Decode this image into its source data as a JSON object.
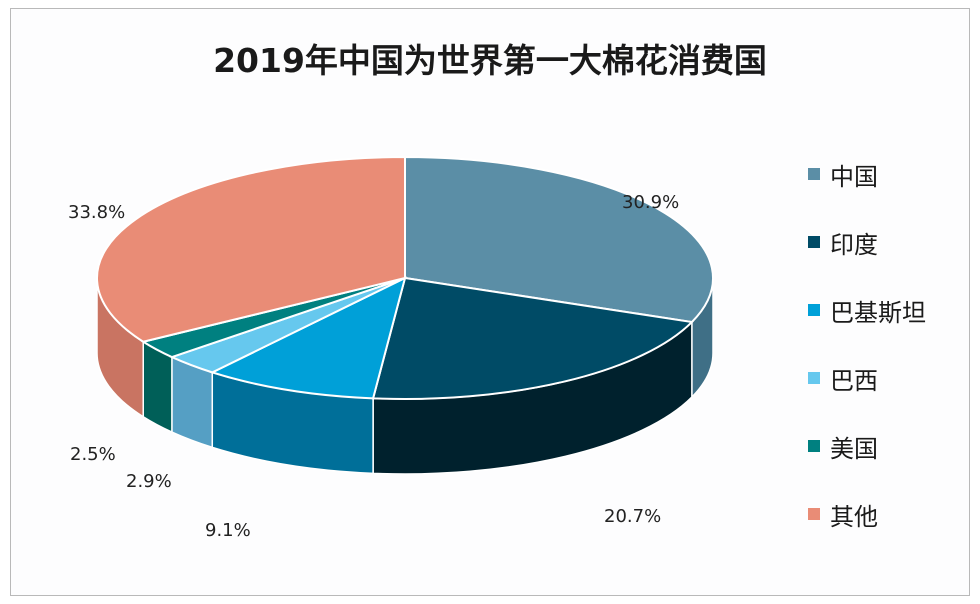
{
  "chart_data": {
    "type": "pie",
    "title": "2019年中国为世界第一大棉花消费国",
    "categories": [
      "中国",
      "印度",
      "巴基斯坦",
      "巴西",
      "美国",
      "其他"
    ],
    "values": [
      30.9,
      20.7,
      9.1,
      2.9,
      2.5,
      33.8
    ],
    "labels": [
      "30.9%",
      "20.7%",
      "9.1%",
      "2.9%",
      "2.5%",
      "33.8%"
    ],
    "colors": [
      "#5b8ea6",
      "#004b66",
      "#00a0d8",
      "#66c8ee",
      "#008080",
      "#e98c76"
    ],
    "side_colors": [
      "#3f6f86",
      "#00212d",
      "#006f99",
      "#559fc4",
      "#005f58",
      "#c97462"
    ],
    "style": "3d",
    "legend_position": "right"
  }
}
